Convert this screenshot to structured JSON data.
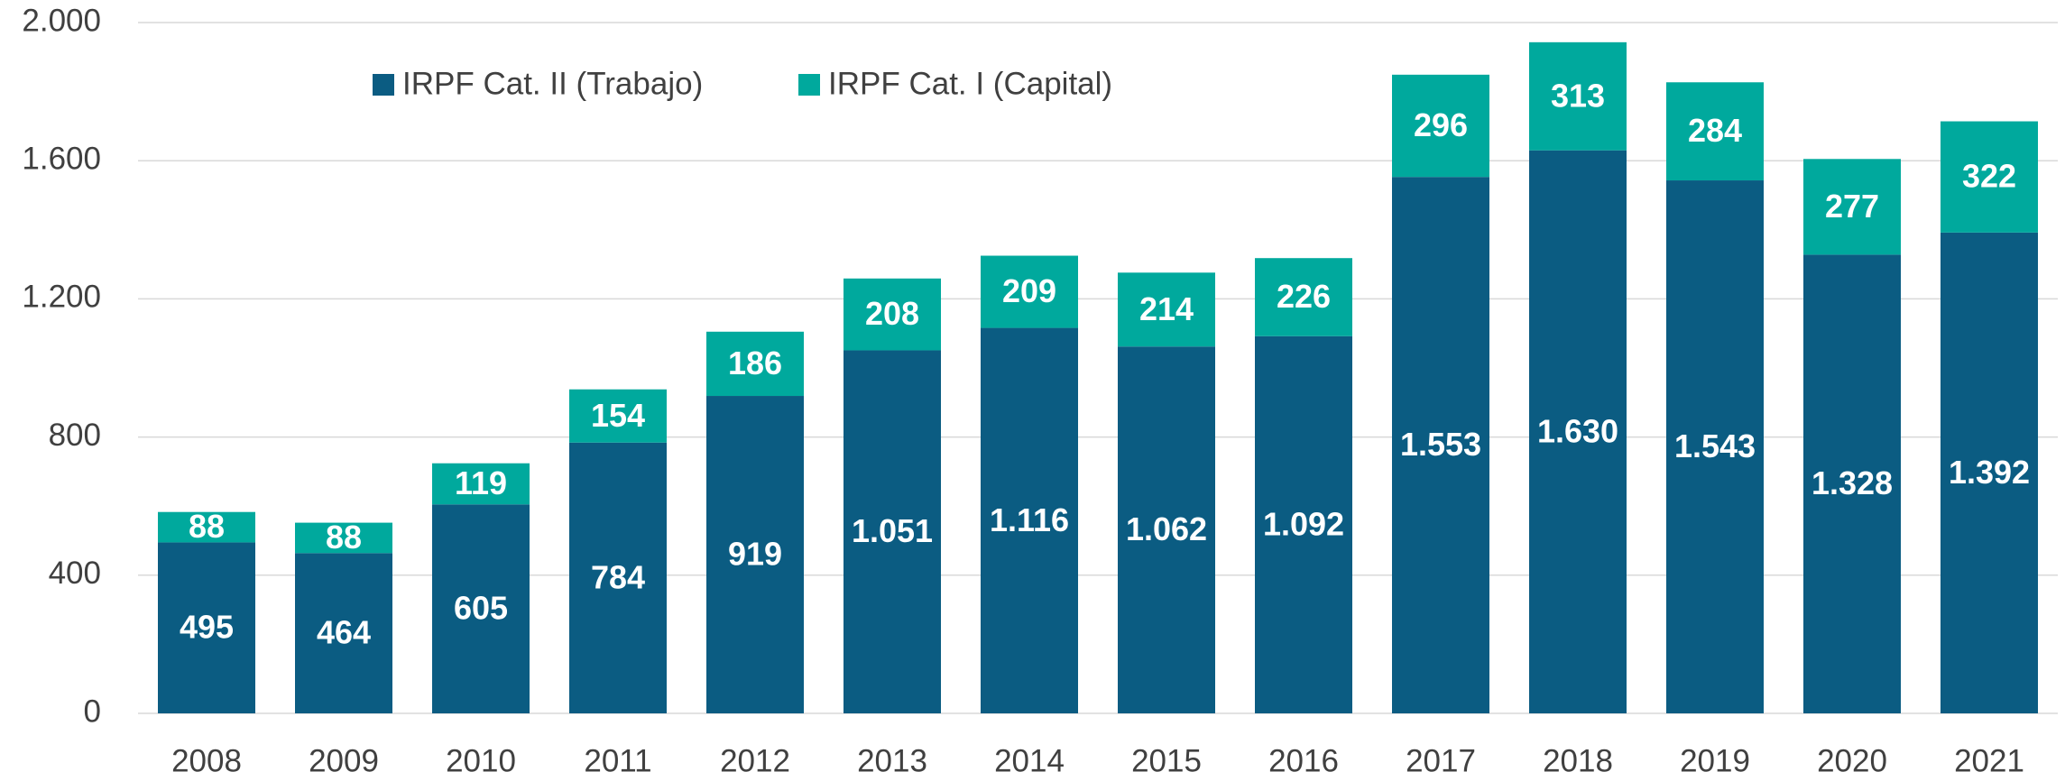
{
  "chart_data": {
    "type": "stacked_bar",
    "categories": [
      "2008",
      "2009",
      "2010",
      "2011",
      "2012",
      "2013",
      "2014",
      "2015",
      "2016",
      "2017",
      "2018",
      "2019",
      "2020",
      "2021"
    ],
    "series": [
      {
        "name": "IRPF Cat. II (Trabajo)",
        "color": "#0b5c82",
        "values": [
          495,
          464,
          605,
          784,
          919,
          1051,
          1116,
          1062,
          1092,
          1553,
          1630,
          1543,
          1328,
          1392
        ],
        "value_labels": [
          "495",
          "464",
          "605",
          "784",
          "919",
          "1.051",
          "1.116",
          "1.062",
          "1.092",
          "1.553",
          "1.630",
          "1.543",
          "1.328",
          "1.392"
        ]
      },
      {
        "name": "IRPF Cat. I (Capital)",
        "color": "#00a99d",
        "values": [
          88,
          88,
          119,
          154,
          186,
          208,
          209,
          214,
          226,
          296,
          313,
          284,
          277,
          322
        ]
      }
    ],
    "ylim": [
      0,
      2000
    ],
    "yticks": [
      0,
      400,
      800,
      {
        "value": 1200,
        "label": "1.200"
      },
      {
        "value": 1600,
        "label": "1.600"
      },
      {
        "value": 2000,
        "label": "2.000"
      }
    ],
    "grid": true,
    "legend": "top"
  }
}
